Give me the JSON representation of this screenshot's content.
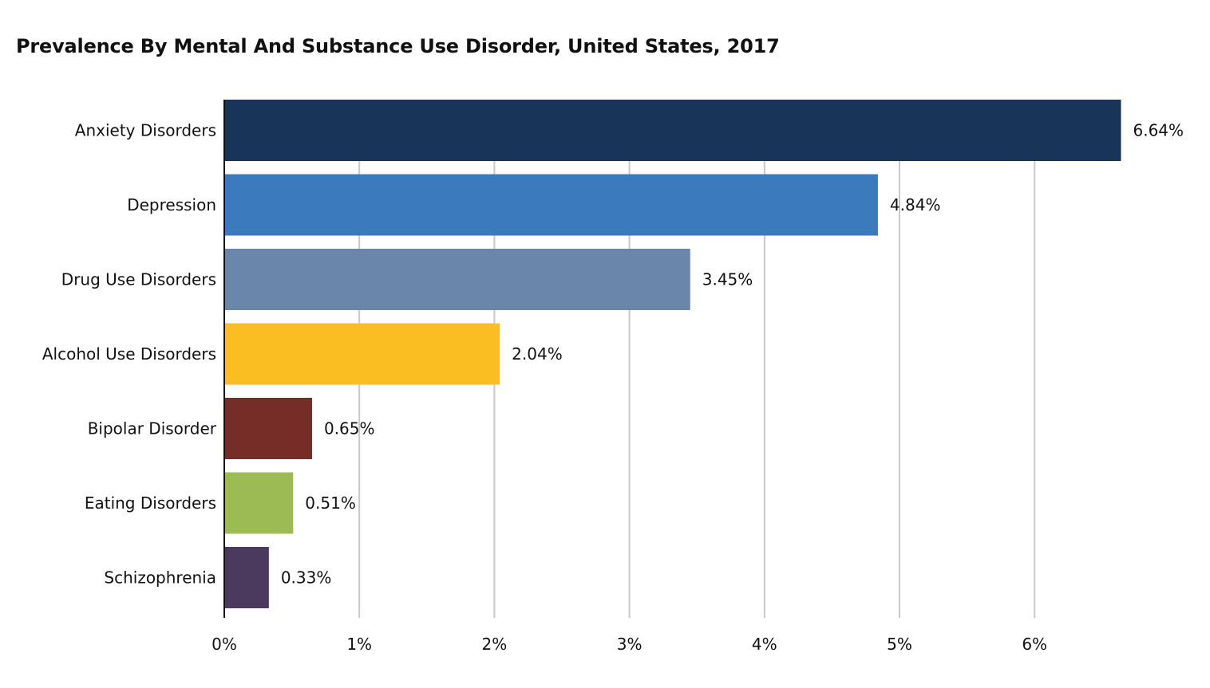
{
  "chart_data": {
    "type": "bar",
    "orientation": "horizontal",
    "title": "Prevalence By Mental And Substance Use Disorder, United States, 2017",
    "xlabel": "",
    "ylabel": "",
    "categories": [
      "Anxiety Disorders",
      "Depression",
      "Drug Use Disorders",
      "Alcohol Use Disorders",
      "Bipolar Disorder",
      "Eating Disorders",
      "Schizophrenia"
    ],
    "values": [
      6.64,
      4.84,
      3.45,
      2.04,
      0.65,
      0.51,
      0.33
    ],
    "value_labels": [
      "6.64%",
      "4.84%",
      "3.45%",
      "2.04%",
      "0.65%",
      "0.51%",
      "0.33%"
    ],
    "colors": [
      "#183458",
      "#3b7abd",
      "#6a87ab",
      "#fbbe22",
      "#762d28",
      "#9dbb55",
      "#4b3a5d"
    ],
    "xlim": [
      0,
      6.64
    ],
    "xticks": [
      0,
      1,
      2,
      3,
      4,
      5,
      6
    ],
    "xtick_labels": [
      "0%",
      "1%",
      "2%",
      "3%",
      "4%",
      "5%",
      "6%"
    ],
    "grid": true,
    "grid_color": "#c8c8c8",
    "legend": "none"
  }
}
